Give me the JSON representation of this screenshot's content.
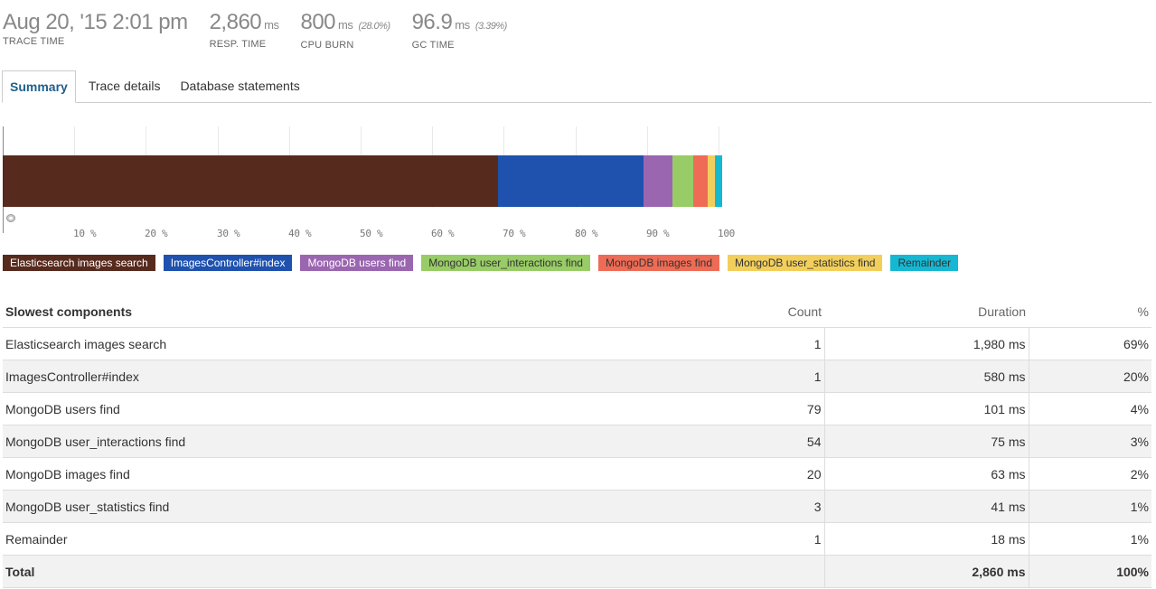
{
  "header": {
    "trace_time": {
      "value": "Aug 20, '15 2:01 pm",
      "caption": "TRACE TIME"
    },
    "resp_time": {
      "value": "2,860",
      "unit": "ms",
      "caption": "RESP. TIME"
    },
    "cpu_burn": {
      "value": "800",
      "unit": "ms",
      "pct": "(28.0%)",
      "caption": "CPU BURN"
    },
    "gc_time": {
      "value": "96.9",
      "unit": "ms",
      "pct": "(3.39%)",
      "caption": "GC TIME"
    }
  },
  "tabs": [
    {
      "label": "Summary",
      "active": true
    },
    {
      "label": "Trace details",
      "active": false
    },
    {
      "label": "Database statements",
      "active": false
    }
  ],
  "chart_data": {
    "type": "bar",
    "orientation": "horizontal-stacked",
    "xlim": [
      0,
      100
    ],
    "x_ticks": [
      "10 %",
      "20 %",
      "30 %",
      "40 %",
      "50 %",
      "60 %",
      "70 %",
      "80 %",
      "90 %",
      "100"
    ],
    "grid": true,
    "series": [
      {
        "name": "Elasticsearch images search",
        "value": 69.2,
        "color": "#572a1e"
      },
      {
        "name": "ImagesController#index",
        "value": 20.3,
        "color": "#1f51ae"
      },
      {
        "name": "MongoDB users find",
        "value": 4.0,
        "color": "#9b66b0"
      },
      {
        "name": "MongoDB user_interactions find",
        "value": 3.0,
        "color": "#98cc66"
      },
      {
        "name": "MongoDB images find",
        "value": 2.0,
        "color": "#ee6b55"
      },
      {
        "name": "MongoDB user_statistics find",
        "value": 1.0,
        "color": "#f2cf5c"
      },
      {
        "name": "Remainder",
        "value": 1.0,
        "color": "#16b7d2"
      }
    ]
  },
  "legend_text_colors": [
    "#ffffff",
    "#ffffff",
    "#ffffff",
    "#333333",
    "#333333",
    "#333333",
    "#333333"
  ],
  "table": {
    "headers": {
      "name": "Slowest components",
      "count": "Count",
      "duration": "Duration",
      "pct": "%"
    },
    "rows": [
      {
        "name": "Elasticsearch images search",
        "count": "1",
        "duration": "1,980 ms",
        "pct": "69%"
      },
      {
        "name": "ImagesController#index",
        "count": "1",
        "duration": "580 ms",
        "pct": "20%"
      },
      {
        "name": "MongoDB users find",
        "count": "79",
        "duration": "101 ms",
        "pct": "4%"
      },
      {
        "name": "MongoDB user_interactions find",
        "count": "54",
        "duration": "75 ms",
        "pct": "3%"
      },
      {
        "name": "MongoDB images find",
        "count": "20",
        "duration": "63 ms",
        "pct": "2%"
      },
      {
        "name": "MongoDB user_statistics find",
        "count": "3",
        "duration": "41 ms",
        "pct": "1%"
      },
      {
        "name": "Remainder",
        "count": "1",
        "duration": "18 ms",
        "pct": "1%"
      }
    ],
    "total": {
      "name": "Total",
      "count": "",
      "duration": "2,860 ms",
      "pct": "100%"
    }
  }
}
